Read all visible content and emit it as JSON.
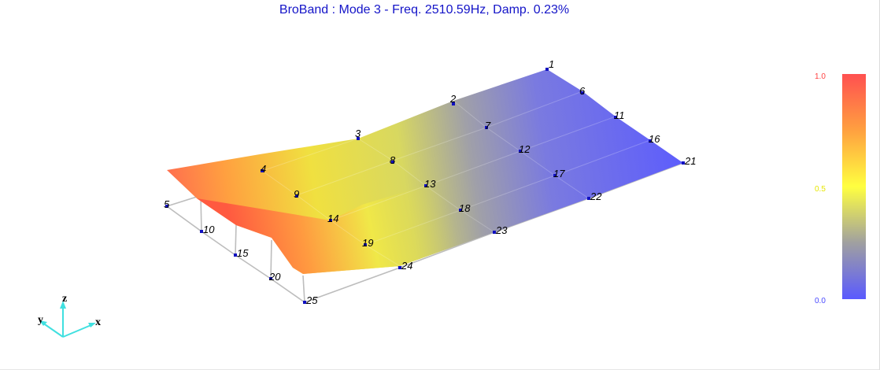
{
  "title": "BroBand : Mode  3 - Freq. 2510.59Hz, Damp.  0.23%",
  "nodes": [
    "1",
    "2",
    "3",
    "4",
    "5",
    "6",
    "7",
    "8",
    "9",
    "10",
    "11",
    "12",
    "13",
    "14",
    "15",
    "16",
    "17",
    "18",
    "19",
    "20",
    "21",
    "22",
    "23",
    "24",
    "25"
  ],
  "colorbar": {
    "ticks": [
      "1.0",
      "0.5",
      "0.0"
    ],
    "tick_colors": [
      "#ff4040",
      "#e6e600",
      "#4848ff"
    ],
    "top_color": "#ff5050",
    "mid_color": "#ffff40",
    "bottom_color": "#5a5aff"
  },
  "triad": {
    "labels": [
      "z",
      "y",
      "x"
    ],
    "color": "#40e0e0"
  }
}
